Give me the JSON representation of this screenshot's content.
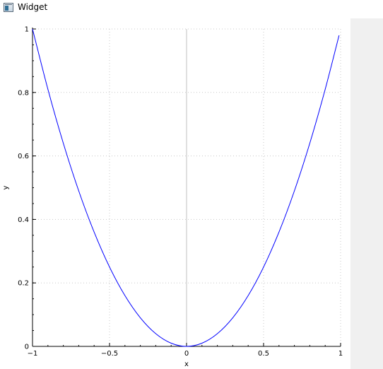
{
  "window": {
    "title": "Widget",
    "icon": "app-window-icon"
  },
  "chart_data": {
    "type": "line",
    "title": "",
    "xlabel": "x",
    "ylabel": "y",
    "xlim": [
      -1,
      1
    ],
    "ylim": [
      0,
      1
    ],
    "x_ticks": [
      -1,
      -0.5,
      0,
      0.5,
      1
    ],
    "x_tick_labels": [
      "−1",
      "−0.5",
      "0",
      "0.5",
      "1"
    ],
    "y_ticks": [
      0,
      0.2,
      0.4,
      0.6,
      0.8,
      1
    ],
    "y_tick_labels": [
      "0",
      "0.2",
      "0.4",
      "0.6",
      "0.8",
      "1"
    ],
    "grid": true,
    "series": [
      {
        "color": "#0000ff",
        "x": [
          -1,
          -0.9,
          -0.8,
          -0.7,
          -0.6,
          -0.5,
          -0.4,
          -0.3,
          -0.2,
          -0.1,
          0,
          0.1,
          0.2,
          0.3,
          0.4,
          0.5,
          0.6,
          0.7,
          0.8,
          0.9,
          0.99
        ],
        "y": [
          1,
          0.81,
          0.64,
          0.49,
          0.36,
          0.25,
          0.16,
          0.09,
          0.04,
          0.01,
          0,
          0.01,
          0.04,
          0.09,
          0.16,
          0.25,
          0.36,
          0.49,
          0.64,
          0.81,
          0.98
        ]
      }
    ]
  }
}
